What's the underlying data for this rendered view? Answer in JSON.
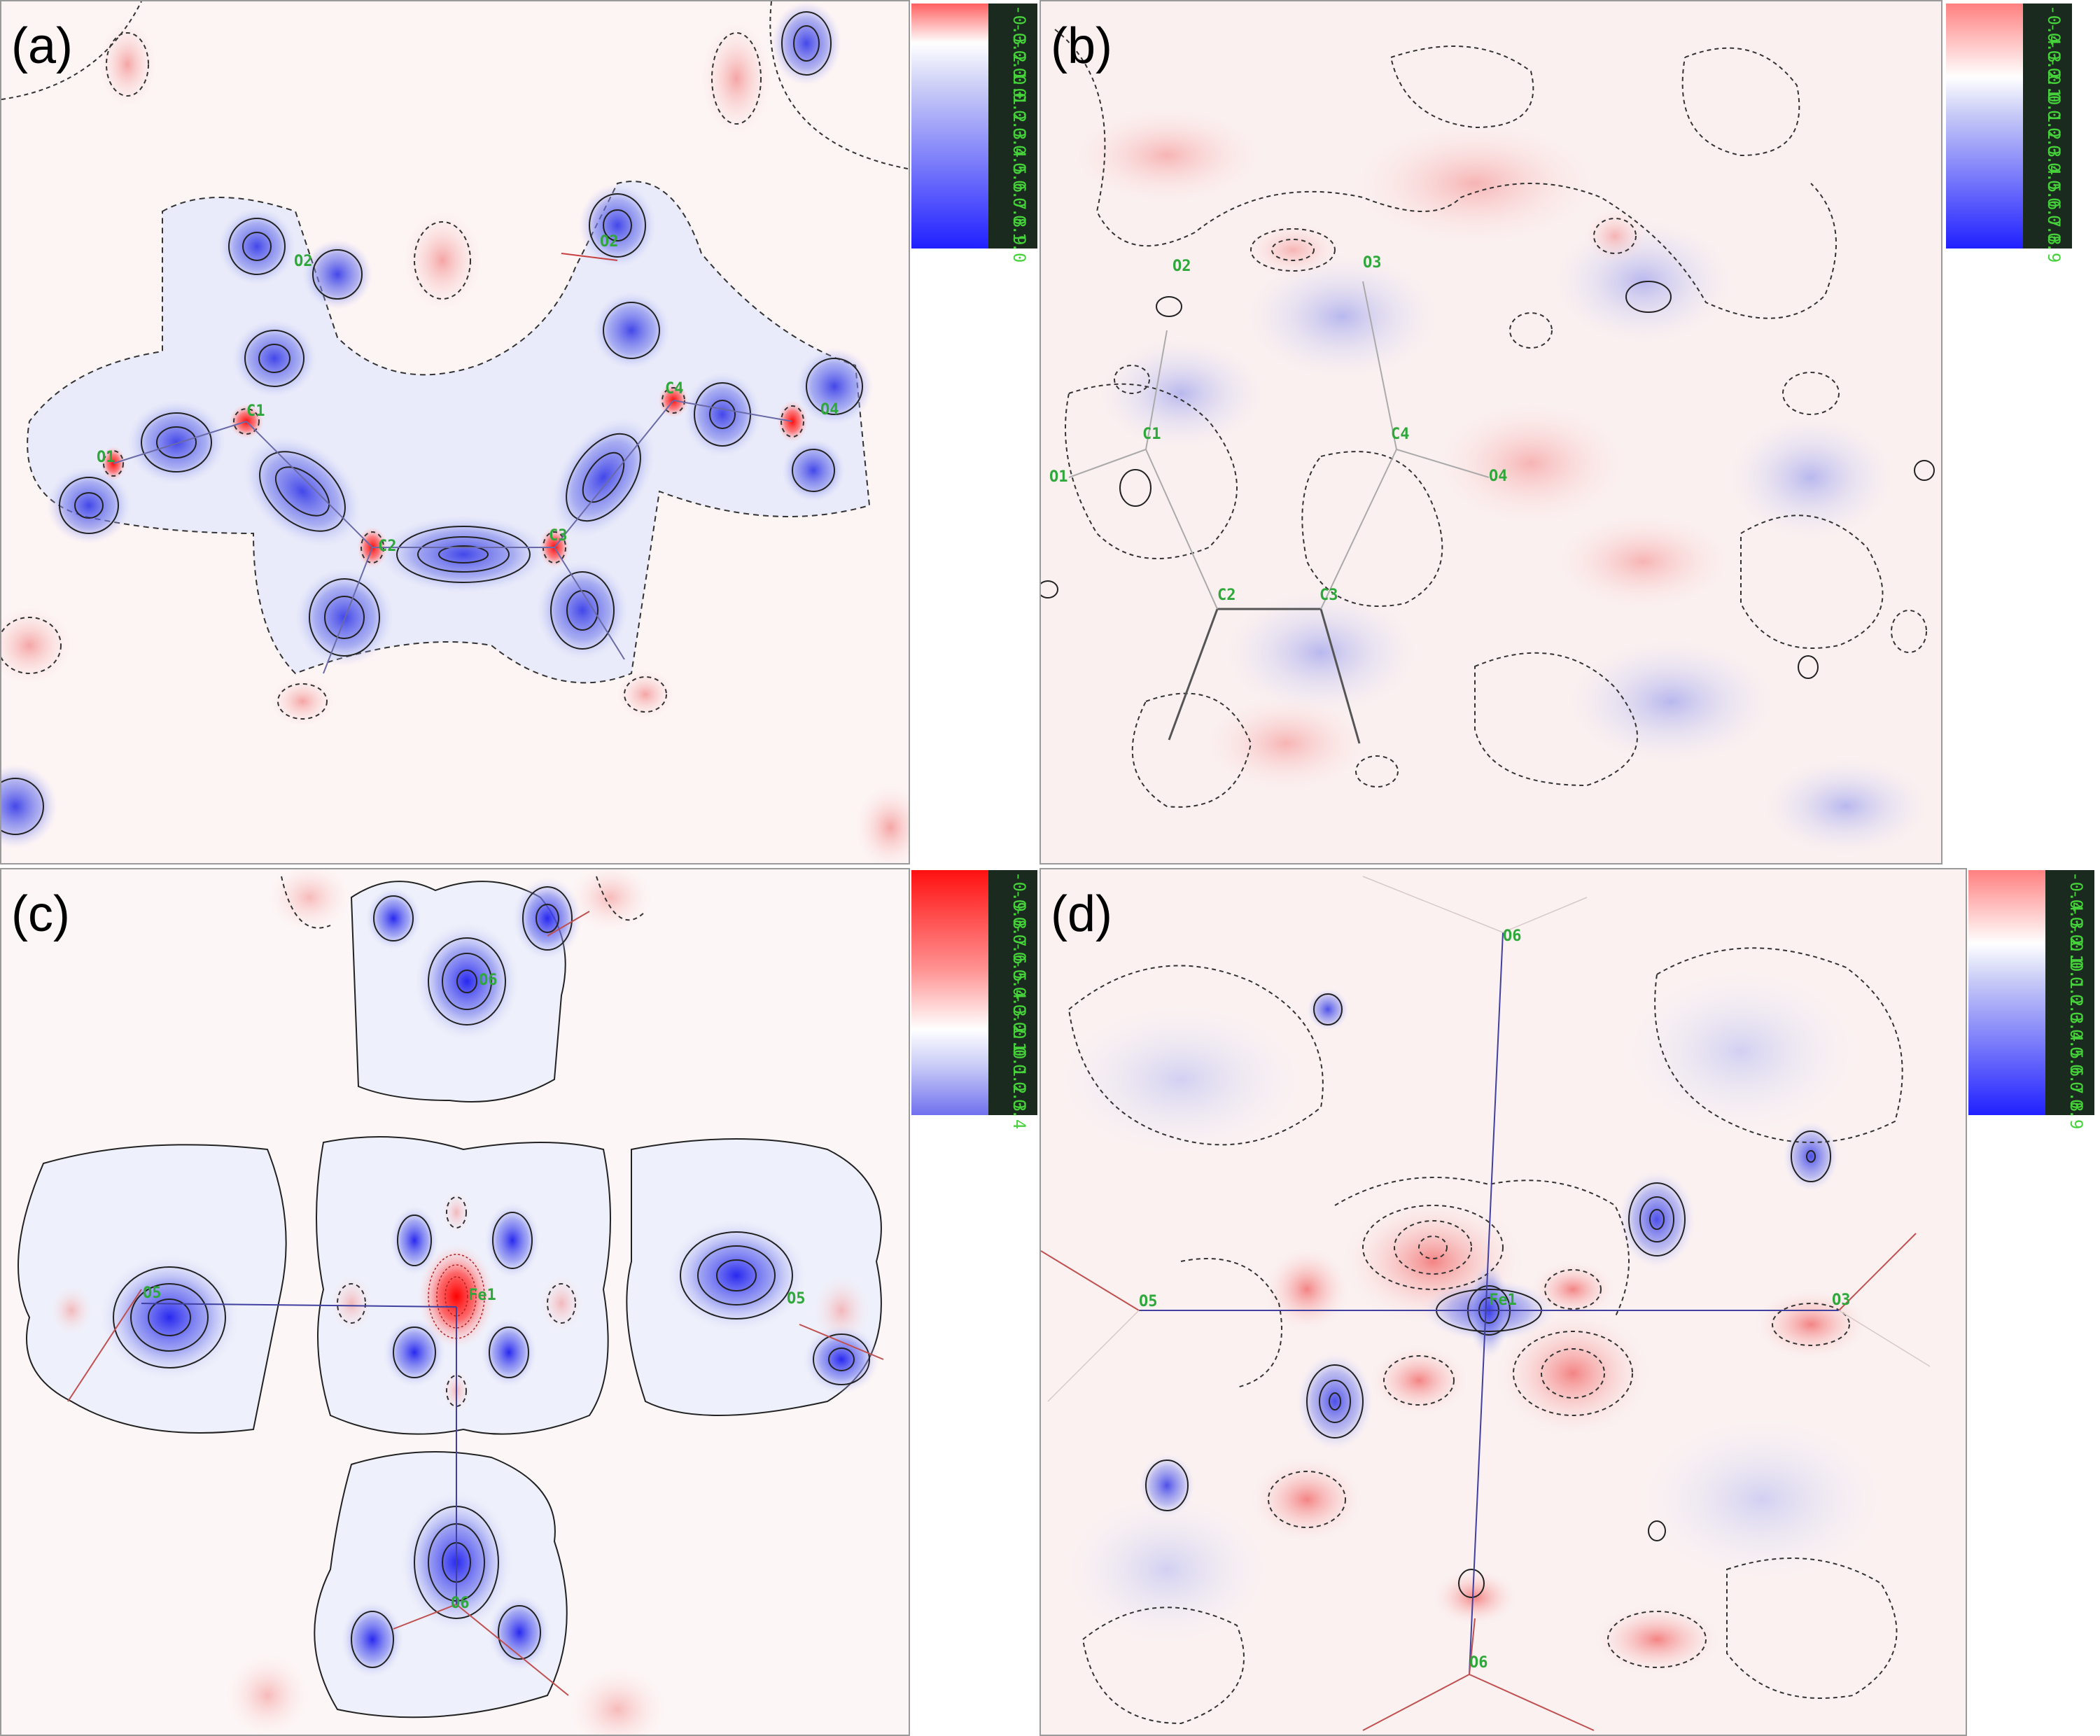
{
  "panels": [
    {
      "label": "(a)",
      "atoms": [
        "O2",
        "O2",
        "C1",
        "O1",
        "C2",
        "C3",
        "C4",
        "O4"
      ],
      "colorbar": {
        "ticks": [
          "-0.3",
          "-0.2",
          "-0.1",
          "-0.0",
          "0.1",
          "0.2",
          "0.3",
          "0.4",
          "0.5",
          "0.6",
          "0.7",
          "0.8",
          "0.9",
          "1.0"
        ],
        "top_color": "#ff4040",
        "mid_color": "#ffffff",
        "bottom_color": "#2020ff"
      }
    },
    {
      "label": "(b)",
      "atoms": [
        "O2",
        "O3",
        "C1",
        "C4",
        "O1",
        "O4",
        "C2",
        "C3"
      ],
      "colorbar": {
        "ticks": [
          "-0.4",
          "-0.3",
          "-0.2",
          "-0.1",
          "0.0",
          "0.1",
          "0.2",
          "0.3",
          "0.4",
          "0.5",
          "0.6",
          "0.7",
          "0.8",
          "0.9"
        ],
        "top_color": "#ff7070",
        "mid_color": "#ffffff",
        "bottom_color": "#2020ff"
      }
    },
    {
      "label": "(c)",
      "atoms": [
        "O6",
        "O5",
        "Fe1",
        "O5",
        "O6"
      ],
      "colorbar": {
        "ticks": [
          "-0.9",
          "-0.8",
          "-0.7",
          "-0.6",
          "-0.5",
          "-0.4",
          "-0.3",
          "-0.2",
          "-0.1",
          "0.0",
          "0.1",
          "0.2",
          "0.3",
          "0.4"
        ],
        "top_color": "#ff1010",
        "mid_color": "#ffffff",
        "bottom_color": "#2020ff"
      }
    },
    {
      "label": "(d)",
      "atoms": [
        "O6",
        "O5",
        "Fe1",
        "O3",
        "O6"
      ],
      "colorbar": {
        "ticks": [
          "-0.4",
          "-0.3",
          "-0.2",
          "-0.1",
          "0.0",
          "0.1",
          "0.2",
          "0.3",
          "0.4",
          "0.5",
          "0.6",
          "0.7",
          "0.8",
          "0.9"
        ],
        "top_color": "#ff7070",
        "mid_color": "#ffffff",
        "bottom_color": "#2020ff"
      }
    }
  ]
}
